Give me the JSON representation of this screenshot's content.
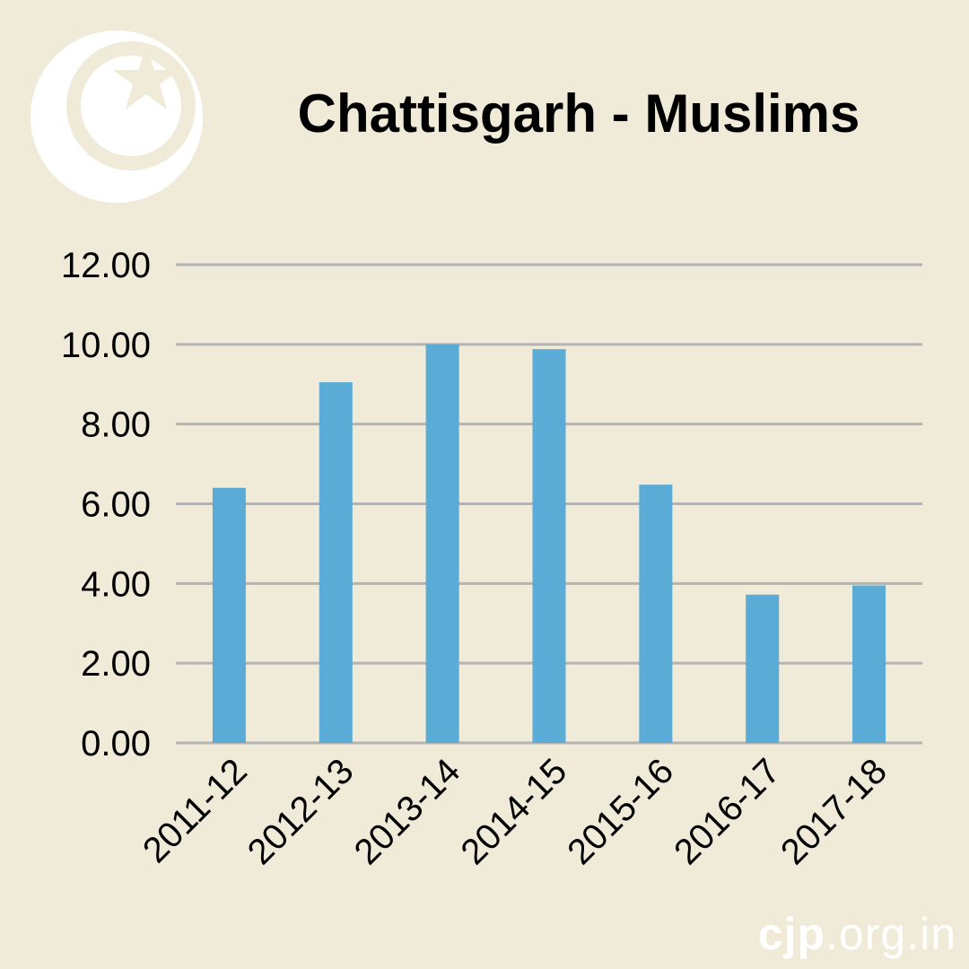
{
  "chart_data": {
    "type": "bar",
    "title": "Chattisgarh - Muslims",
    "categories": [
      "2011-12",
      "2012-13",
      "2013-14",
      "2014-15",
      "2015-16",
      "2016-17",
      "2017-18"
    ],
    "values": [
      6.4,
      9.05,
      10.0,
      9.88,
      6.48,
      3.72,
      3.95
    ],
    "ylim": [
      0,
      12
    ],
    "yticks": [
      "0.00",
      "2.00",
      "4.00",
      "6.00",
      "8.00",
      "10.00",
      "12.00"
    ],
    "grid": true,
    "bar_color": "#5aabd6",
    "grid_color": "#b3b3b3"
  },
  "branding": {
    "emblem_icon": "crescent-star-icon",
    "watermark_brand": "cjp",
    "watermark_domain": ".org.in"
  }
}
